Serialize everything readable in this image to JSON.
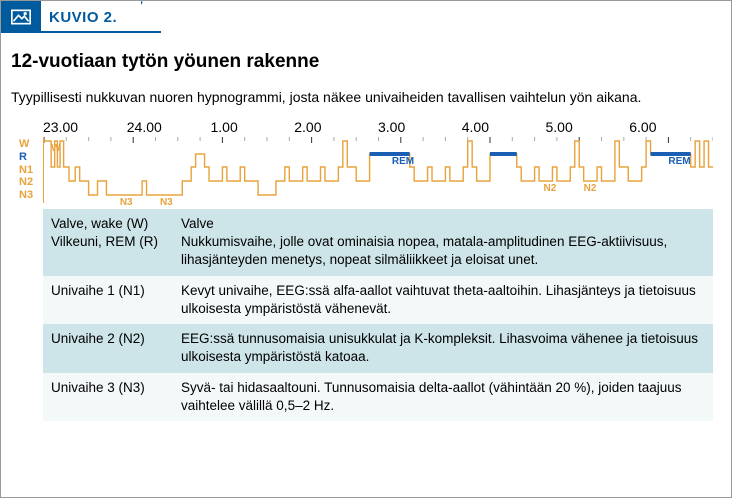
{
  "header": {
    "figure_label": "KUVIO 2."
  },
  "title": "12-vuotiaan tytön yöunen rakenne",
  "subtitle": "Tyypillisesti nukkuvan nuoren hypnogrammi, josta näkee univaiheiden tavallisen vaihtelun yön aikana.",
  "chart": {
    "type": "hypnogram",
    "time_labels": [
      "23.00",
      "24.00",
      "1.00",
      "2.00",
      "3.00",
      "4.00",
      "5.00",
      "6.00"
    ],
    "time_start": 23.0,
    "time_end": 6.5,
    "y_stages": [
      "W",
      "R",
      "N1",
      "N2",
      "N3"
    ],
    "y_colors": {
      "W": "#e8a33d",
      "R": "#1a5fb4",
      "N1": "#e8a33d",
      "N2": "#e8a33d",
      "N3": "#e8a33d"
    },
    "line_color": "#e8a33d",
    "rem_color": "#1a5fb4",
    "line_width": 1.4,
    "rem_bar_height": 4,
    "background": "#ffffff",
    "stages_seq": [
      {
        "t": 23.0,
        "s": "W"
      },
      {
        "t": 23.05,
        "s": "W"
      },
      {
        "t": 23.08,
        "s": "N1"
      },
      {
        "t": 23.12,
        "s": "W"
      },
      {
        "t": 23.15,
        "s": "N1"
      },
      {
        "t": 23.18,
        "s": "W"
      },
      {
        "t": 23.22,
        "s": "N1"
      },
      {
        "t": 23.28,
        "s": "N2"
      },
      {
        "t": 23.35,
        "s": "N1"
      },
      {
        "t": 23.4,
        "s": "N2"
      },
      {
        "t": 23.5,
        "s": "N3"
      },
      {
        "t": 23.6,
        "s": "N2"
      },
      {
        "t": 23.7,
        "s": "N3"
      },
      {
        "t": 24.1,
        "s": "N2"
      },
      {
        "t": 24.15,
        "s": "N3"
      },
      {
        "t": 24.55,
        "s": "N2"
      },
      {
        "t": 24.65,
        "s": "N1"
      },
      {
        "t": 24.7,
        "s": "R"
      },
      {
        "t": 24.8,
        "s": "N1"
      },
      {
        "t": 24.85,
        "s": "N2"
      },
      {
        "t": 25.0,
        "s": "N1"
      },
      {
        "t": 25.05,
        "s": "N2"
      },
      {
        "t": 25.2,
        "s": "N1"
      },
      {
        "t": 25.25,
        "s": "N2"
      },
      {
        "t": 25.4,
        "s": "N3"
      },
      {
        "t": 25.6,
        "s": "N2"
      },
      {
        "t": 25.7,
        "s": "N1"
      },
      {
        "t": 25.75,
        "s": "N2"
      },
      {
        "t": 25.9,
        "s": "N1"
      },
      {
        "t": 25.95,
        "s": "N2"
      },
      {
        "t": 26.1,
        "s": "N1"
      },
      {
        "t": 26.15,
        "s": "N2"
      },
      {
        "t": 26.3,
        "s": "N1"
      },
      {
        "t": 26.35,
        "s": "W"
      },
      {
        "t": 26.4,
        "s": "N1"
      },
      {
        "t": 26.5,
        "s": "N2"
      },
      {
        "t": 26.65,
        "s": "R"
      },
      {
        "t": 27.1,
        "s": "N1"
      },
      {
        "t": 27.15,
        "s": "N2"
      },
      {
        "t": 27.3,
        "s": "N1"
      },
      {
        "t": 27.35,
        "s": "N2"
      },
      {
        "t": 27.5,
        "s": "N1"
      },
      {
        "t": 27.55,
        "s": "N2"
      },
      {
        "t": 27.7,
        "s": "N1"
      },
      {
        "t": 27.75,
        "s": "W"
      },
      {
        "t": 27.8,
        "s": "N1"
      },
      {
        "t": 27.85,
        "s": "N2"
      },
      {
        "t": 28.0,
        "s": "R"
      },
      {
        "t": 28.3,
        "s": "N1"
      },
      {
        "t": 28.35,
        "s": "N2"
      },
      {
        "t": 28.5,
        "s": "N1"
      },
      {
        "t": 28.55,
        "s": "N2"
      },
      {
        "t": 28.7,
        "s": "N1"
      },
      {
        "t": 28.75,
        "s": "N2"
      },
      {
        "t": 28.9,
        "s": "N1"
      },
      {
        "t": 28.95,
        "s": "W"
      },
      {
        "t": 29.0,
        "s": "N1"
      },
      {
        "t": 29.05,
        "s": "N2"
      },
      {
        "t": 29.2,
        "s": "N1"
      },
      {
        "t": 29.25,
        "s": "N2"
      },
      {
        "t": 29.4,
        "s": "W"
      },
      {
        "t": 29.45,
        "s": "N1"
      },
      {
        "t": 29.55,
        "s": "N2"
      },
      {
        "t": 29.7,
        "s": "N1"
      },
      {
        "t": 29.75,
        "s": "W"
      },
      {
        "t": 29.8,
        "s": "R"
      },
      {
        "t": 30.25,
        "s": "N1"
      },
      {
        "t": 30.3,
        "s": "W"
      },
      {
        "t": 30.35,
        "s": "N1"
      },
      {
        "t": 30.4,
        "s": "W"
      },
      {
        "t": 30.45,
        "s": "N1"
      }
    ],
    "rem_bars": [
      {
        "start": 26.65,
        "end": 27.1
      },
      {
        "start": 28.0,
        "end": 28.3
      },
      {
        "start": 29.8,
        "end": 30.25
      }
    ],
    "stage_annotations": [
      {
        "t": 23.08,
        "s": "W",
        "label": "W"
      },
      {
        "t": 23.85,
        "s": "N3",
        "label": "N3"
      },
      {
        "t": 24.3,
        "s": "N3",
        "label": "N3"
      },
      {
        "t": 26.9,
        "s": "R",
        "label": "REM",
        "rem": true
      },
      {
        "t": 28.6,
        "s": "N2",
        "label": "N2"
      },
      {
        "t": 29.05,
        "s": "N2",
        "label": "N2"
      },
      {
        "t": 30.0,
        "s": "R",
        "label": "REM",
        "rem": true
      }
    ],
    "tick_interval_major": 1.0,
    "tick_interval_minor": 0.25
  },
  "table": {
    "rows": [
      {
        "c1": "Valve, wake (W)\nVilkeuni, REM (R)",
        "c2": "Valve\nNukkumisvaihe, jolle ovat ominaisia nopea, matala-amplitudinen EEG-aktiivisuus, lihasjänteyden menetys, nopeat silmäliikkeet ja eloisat unet."
      },
      {
        "c1": "Univaihe 1 (N1)",
        "c2": "Kevyt univaihe, EEG:ssä alfa-aallot vaihtuvat theta-aaltoihin. Lihasjänteys ja tietoisuus ulkoisesta ympäristöstä vähenevät."
      },
      {
        "c1": "Univaihe 2 (N2)",
        "c2": "EEG:ssä tunnusomaisia unisukkulat ja K-kompleksit. Lihasvoima vähenee ja tietoisuus ulkoisesta ympäristöstä katoaa."
      },
      {
        "c1": "Univaihe 3 (N3)",
        "c2": "Syvä- tai hidasaaltouni. Tunnusomaisia delta-aallot (vähintään 20 %), joiden taajuus vaihtelee välillä 0,5–2 Hz."
      }
    ],
    "odd_bg": "#cde4e8",
    "even_bg": "#f3f8f9"
  }
}
